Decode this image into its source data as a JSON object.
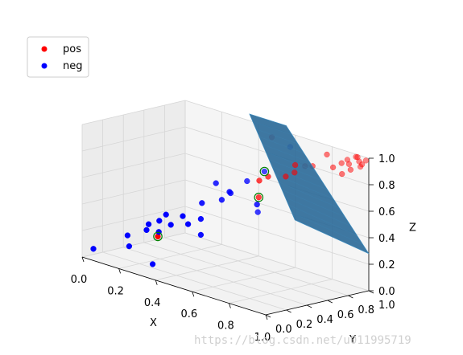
{
  "chart_data": {
    "type": "scatter",
    "projection": "3d",
    "xlabel": "X",
    "ylabel": "Y",
    "zlabel": "Z",
    "xlim": [
      0,
      1
    ],
    "ylim": [
      0,
      1
    ],
    "zlim": [
      0,
      1
    ],
    "grid": true,
    "legend_position": "top-left",
    "x_ticks": [
      "0.0",
      "0.2",
      "0.4",
      "0.6",
      "0.8",
      "1.0"
    ],
    "y_ticks": [
      "0.0",
      "0.2",
      "0.4",
      "0.6",
      "0.8",
      "1.0"
    ],
    "z_ticks": [
      "0.0",
      "0.2",
      "0.4",
      "0.6",
      "0.8",
      "1.0"
    ],
    "surface": {
      "description_from_image": "separating plane",
      "color": "#2e6b99",
      "edge_color": "#3b8fc4",
      "corners": [
        {
          "x": 0.35,
          "y": 1.0,
          "z": 1.05
        },
        {
          "x": 0.55,
          "y": 1.0,
          "z": 1.05
        },
        {
          "x": 1.0,
          "y": 1.0,
          "z": 0.28
        },
        {
          "x": 0.85,
          "y": 0.55,
          "z": 0.55
        }
      ]
    },
    "series": [
      {
        "name": "pos",
        "color": "#ff0000",
        "points": [
          {
            "x": 0.93,
            "y": 1.0,
            "z": 0.98
          },
          {
            "x": 0.95,
            "y": 0.98,
            "z": 0.99
          },
          {
            "x": 0.97,
            "y": 0.96,
            "z": 0.97
          },
          {
            "x": 0.9,
            "y": 0.97,
            "z": 0.95
          },
          {
            "x": 0.92,
            "y": 0.95,
            "z": 0.93
          },
          {
            "x": 0.88,
            "y": 0.95,
            "z": 0.92
          },
          {
            "x": 0.96,
            "y": 0.99,
            "z": 0.92
          },
          {
            "x": 0.94,
            "y": 0.93,
            "z": 0.9
          },
          {
            "x": 0.85,
            "y": 0.92,
            "z": 0.88
          },
          {
            "x": 0.91,
            "y": 0.9,
            "z": 0.86
          },
          {
            "x": 0.98,
            "y": 0.97,
            "z": 0.95
          },
          {
            "x": 0.99,
            "y": 0.99,
            "z": 0.98
          },
          {
            "x": 0.8,
            "y": 0.95,
            "z": 0.95
          },
          {
            "x": 0.75,
            "y": 0.9,
            "z": 0.85
          },
          {
            "x": 0.72,
            "y": 0.88,
            "z": 0.84
          },
          {
            "x": 0.7,
            "y": 0.82,
            "z": 0.85
          },
          {
            "x": 0.68,
            "y": 0.85,
            "z": 0.78
          },
          {
            "x": 0.66,
            "y": 0.8,
            "z": 0.75
          },
          {
            "x": 0.62,
            "y": 0.7,
            "z": 0.75
          },
          {
            "x": 0.6,
            "y": 0.65,
            "z": 0.72
          },
          {
            "x": 0.58,
            "y": 0.68,
            "z": 0.58
          },
          {
            "x": 0.5,
            "y": 0.95,
            "z": 0.95
          },
          {
            "x": 0.3,
            "y": 0.2,
            "z": 0.25
          }
        ]
      },
      {
        "name": "neg",
        "color": "#0000ff",
        "points": [
          {
            "x": 0.05,
            "y": 0.02,
            "z": 0.08
          },
          {
            "x": 0.2,
            "y": 0.1,
            "z": 0.15
          },
          {
            "x": 0.3,
            "y": 0.15,
            "z": 0.05
          },
          {
            "x": 0.18,
            "y": 0.12,
            "z": 0.22
          },
          {
            "x": 0.25,
            "y": 0.18,
            "z": 0.28
          },
          {
            "x": 0.35,
            "y": 0.12,
            "z": 0.32
          },
          {
            "x": 0.28,
            "y": 0.25,
            "z": 0.35
          },
          {
            "x": 0.3,
            "y": 0.28,
            "z": 0.4
          },
          {
            "x": 0.36,
            "y": 0.22,
            "z": 0.36
          },
          {
            "x": 0.38,
            "y": 0.3,
            "z": 0.42
          },
          {
            "x": 0.42,
            "y": 0.28,
            "z": 0.38
          },
          {
            "x": 0.45,
            "y": 0.35,
            "z": 0.42
          },
          {
            "x": 0.4,
            "y": 0.45,
            "z": 0.5
          },
          {
            "x": 0.48,
            "y": 0.5,
            "z": 0.55
          },
          {
            "x": 0.5,
            "y": 0.55,
            "z": 0.6
          },
          {
            "x": 0.55,
            "y": 0.62,
            "z": 0.7
          },
          {
            "x": 0.42,
            "y": 0.55,
            "z": 0.64
          },
          {
            "x": 0.6,
            "y": 0.7,
            "z": 0.78
          },
          {
            "x": 0.7,
            "y": 0.45,
            "z": 0.62
          },
          {
            "x": 0.45,
            "y": 0.35,
            "z": 0.3
          },
          {
            "x": 0.25,
            "y": 0.2,
            "z": 0.32
          },
          {
            "x": 0.55,
            "y": 0.45,
            "z": 0.65
          },
          {
            "x": 0.6,
            "y": 0.95,
            "z": 0.92
          },
          {
            "x": 0.62,
            "y": 0.6,
            "z": 0.5
          }
        ]
      }
    ],
    "highlighted": {
      "color": "#008000",
      "points": [
        {
          "x": 0.3,
          "y": 0.2,
          "z": 0.25
        },
        {
          "x": 0.58,
          "y": 0.68,
          "z": 0.58
        },
        {
          "x": 0.6,
          "y": 0.7,
          "z": 0.78
        }
      ]
    }
  },
  "watermark": "https://blog.csdn.net/u011995719"
}
